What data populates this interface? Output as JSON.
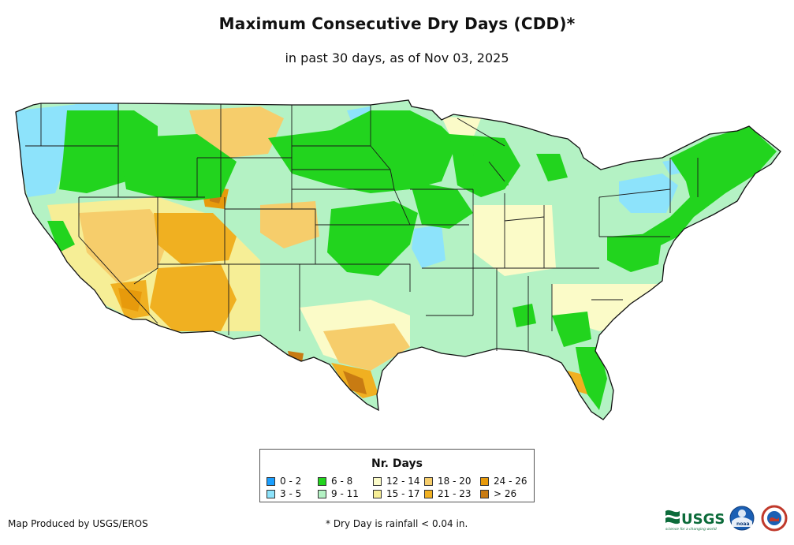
{
  "title": "Maximum Consecutive Dry Days (CDD)*",
  "subtitle": "in past 30 days, as of Nov 03, 2025",
  "legend": {
    "title": "Nr. Days",
    "items": [
      {
        "label": "0 - 2",
        "color": "#1a9fff"
      },
      {
        "label": "3 - 5",
        "color": "#8de3fb"
      },
      {
        "label": "6 - 8",
        "color": "#22d41e"
      },
      {
        "label": "9 - 11",
        "color": "#b4f2c4"
      },
      {
        "label": "12 - 14",
        "color": "#fbfbc8"
      },
      {
        "label": "15 - 17",
        "color": "#f6ee96"
      },
      {
        "label": "18 - 20",
        "color": "#f6cd6b"
      },
      {
        "label": "21 - 23",
        "color": "#f0b021"
      },
      {
        "label": "24 - 26",
        "color": "#e79a0c"
      },
      {
        "label": "> 26",
        "color": "#c87b12"
      }
    ]
  },
  "credit": "Map Produced by USGS/EROS",
  "footnote": "* Dry Day is rainfall < 0.04 in.",
  "logos": {
    "usgs_text": "USGS",
    "usgs_tagline": "science for a changing world",
    "noaa_text": "noaa"
  }
}
